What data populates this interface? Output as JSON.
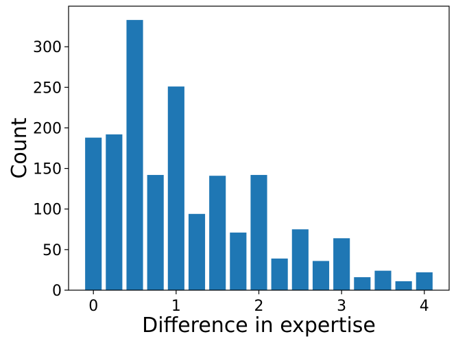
{
  "chart_data": {
    "type": "bar",
    "title": "",
    "xlabel": "Difference in expertise",
    "ylabel": "Count",
    "x": [
      0,
      0.25,
      0.5,
      0.75,
      1,
      1.25,
      1.5,
      1.75,
      2,
      2.25,
      2.5,
      2.75,
      3,
      3.25,
      3.5,
      3.75,
      4
    ],
    "values": [
      188,
      192,
      333,
      142,
      251,
      94,
      141,
      71,
      142,
      39,
      75,
      36,
      64,
      16,
      24,
      11,
      22
    ],
    "bar_width": 0.2,
    "xlim": [
      -0.3,
      4.3
    ],
    "ylim": [
      0,
      350
    ],
    "xticks": [
      0,
      1,
      2,
      3,
      4
    ],
    "xtick_labels": [
      "0",
      "1",
      "2",
      "3",
      "4"
    ],
    "yticks": [
      0,
      50,
      100,
      150,
      200,
      250,
      300
    ],
    "ytick_labels": [
      "0",
      "50",
      "100",
      "150",
      "200",
      "250",
      "300"
    ],
    "color": "#1f77b4",
    "grid": false,
    "legend": "none"
  }
}
